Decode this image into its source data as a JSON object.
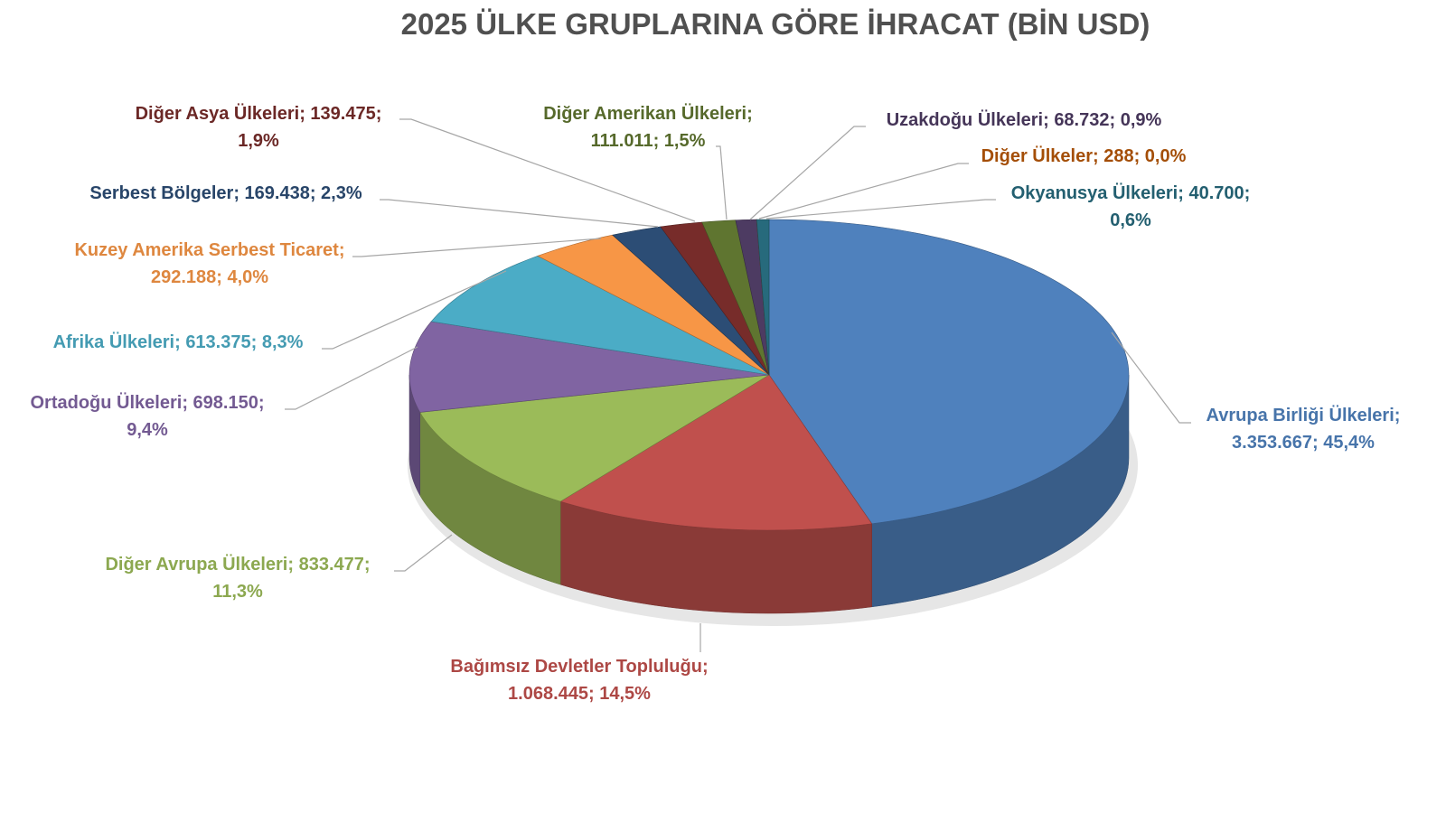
{
  "chart_data": {
    "type": "pie",
    "style": "3d",
    "title": "2025 ÜLKE GRUPLARINA GÖRE İHRACAT (BİN USD)",
    "legend": "none",
    "slices": [
      {
        "label": "Avrupa Birliği Ülkeleri",
        "value": 3353667,
        "value_text": "3.353.667",
        "percent": "45,4%",
        "color": "#4f81bd",
        "text_color": "#4f81bd"
      },
      {
        "label": "Bağımsız Devletler Topluluğu",
        "value": 1068445,
        "value_text": "1.068.445",
        "percent": "14,5%",
        "color": "#c0504d",
        "text_color": "#c0504d"
      },
      {
        "label": "Diğer Avrupa Ülkeleri",
        "value": 833477,
        "value_text": "833.477",
        "percent": "11,3%",
        "color": "#9bbb59",
        "text_color": "#9bbb59"
      },
      {
        "label": "Ortadoğu Ülkeleri",
        "value": 698150,
        "value_text": "698.150",
        "percent": "9,4%",
        "color": "#8064a2",
        "text_color": "#8064a2"
      },
      {
        "label": "Afrika Ülkeleri",
        "value": 613375,
        "value_text": "613.375",
        "percent": "8,3%",
        "color": "#4bacc6",
        "text_color": "#4bacc6"
      },
      {
        "label": "Kuzey Amerika Serbest Ticaret",
        "value": 292188,
        "value_text": "292.188",
        "percent": "4,0%",
        "color": "#f79646",
        "text_color": "#f79646"
      },
      {
        "label": "Serbest Bölgeler",
        "value": 169438,
        "value_text": "169.438",
        "percent": "2,3%",
        "color": "#2c4d75",
        "text_color": "#2c4d75"
      },
      {
        "label": "Diğer Asya Ülkeleri",
        "value": 139475,
        "value_text": "139.475",
        "percent": "1,9%",
        "color": "#772c2a",
        "text_color": "#772c2a"
      },
      {
        "label": "Diğer Amerikan Ülkeleri",
        "value": 111011,
        "value_text": "111.011",
        "percent": "1,5%",
        "color": "#5f7530",
        "text_color": "#5f7530"
      },
      {
        "label": "Uzakdoğu Ülkeleri",
        "value": 68732,
        "value_text": "68.732",
        "percent": "0,9%",
        "color": "#4d3b62",
        "text_color": "#4d3b62"
      },
      {
        "label": "Diğer Ülkeler",
        "value": 288,
        "value_text": "288",
        "percent": "0,0%",
        "color": "#b65708",
        "text_color": "#b65708"
      },
      {
        "label": "Okyanusya Ülkeleri",
        "value": 40700,
        "value_text": "40.700",
        "percent": "0,6%",
        "color": "#276a7c",
        "text_color": "#276a7c"
      }
    ]
  }
}
